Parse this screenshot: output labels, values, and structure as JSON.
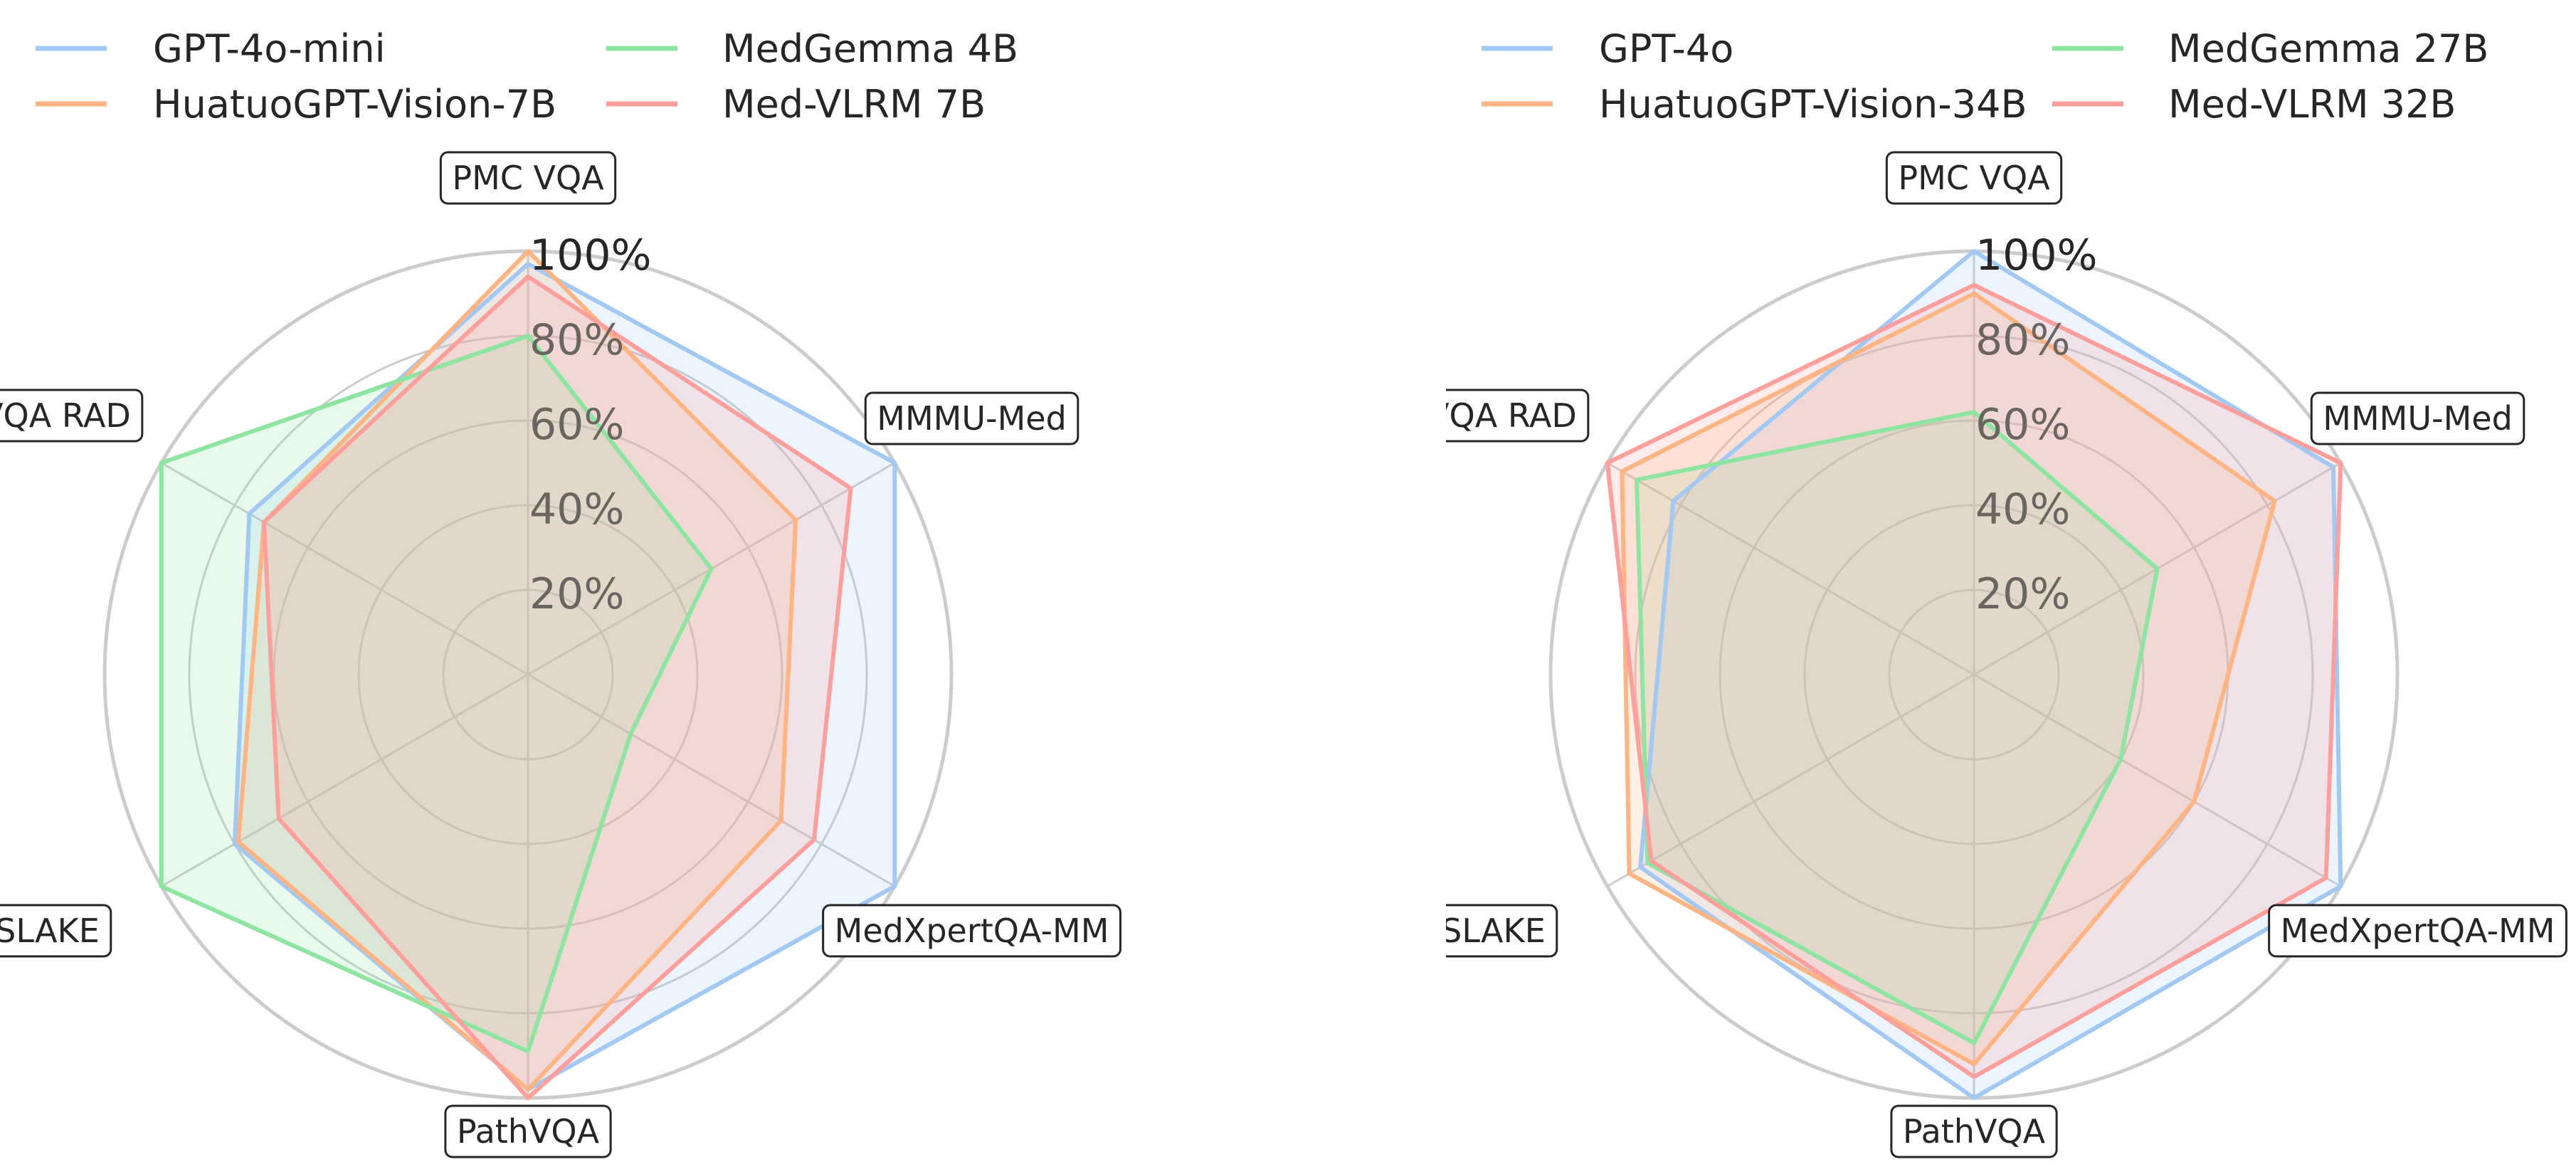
{
  "chart_data": [
    {
      "type": "radar",
      "axes": [
        "PMC VQA",
        "MMMU-Med",
        "MedXpertQA-MM",
        "PathVQA",
        "SLAKE",
        "VQA RAD"
      ],
      "ticks": [
        "20%",
        "40%",
        "60%",
        "80%",
        "100%"
      ],
      "rlim": [
        0,
        100
      ],
      "grid": true,
      "legend": "top",
      "series": [
        {
          "name": "GPT-4o-mini",
          "color": "#a1c9f4",
          "values": [
            97,
            100,
            100,
            98,
            80,
            76
          ]
        },
        {
          "name": "HuatuoGPT-Vision-7B",
          "color": "#ffb482",
          "values": [
            100,
            73,
            69,
            98,
            79,
            72
          ]
        },
        {
          "name": "MedGemma 4B",
          "color": "#8de5a1",
          "values": [
            80,
            50,
            28,
            89,
            100,
            100
          ]
        },
        {
          "name": "Med-VLRM 7B",
          "color": "#ff9f9b",
          "values": [
            94,
            88,
            78,
            100,
            68,
            72
          ]
        }
      ]
    },
    {
      "type": "radar",
      "axes": [
        "PMC VQA",
        "MMMU-Med",
        "MedXpertQA-MM",
        "PathVQA",
        "SLAKE",
        "VQA RAD"
      ],
      "ticks": [
        "20%",
        "40%",
        "60%",
        "80%",
        "100%"
      ],
      "rlim": [
        0,
        100
      ],
      "grid": true,
      "legend": "top",
      "series": [
        {
          "name": "GPT-4o",
          "color": "#a1c9f4",
          "values": [
            100,
            98,
            100,
            100,
            91,
            82
          ]
        },
        {
          "name": "HuatuoGPT-Vision-34B",
          "color": "#ffb482",
          "values": [
            90,
            82,
            60,
            92,
            94,
            96
          ]
        },
        {
          "name": "MedGemma 27B",
          "color": "#8de5a1",
          "values": [
            62,
            50,
            40,
            87,
            89,
            92
          ]
        },
        {
          "name": "Med-VLRM 32B",
          "color": "#ff9f9b",
          "values": [
            92,
            100,
            96,
            95,
            88,
            100
          ]
        }
      ]
    }
  ]
}
